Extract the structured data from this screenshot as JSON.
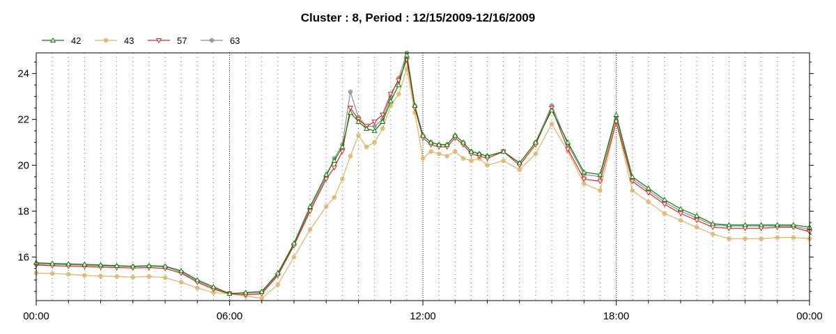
{
  "chart_data": {
    "type": "line",
    "title": "Cluster : 8, Period : 12/15/2009-12/16/2009",
    "xlabel": "",
    "ylabel": "",
    "x_ticks": [
      "00:00",
      "06:00",
      "12:00",
      "18:00",
      "00:00"
    ],
    "y_ticks": [
      "16",
      "18",
      "20",
      "22",
      "24"
    ],
    "xlim_hours": [
      0,
      24
    ],
    "ylim": [
      14.1,
      24.9
    ],
    "grid": true,
    "legend_position": "top-left",
    "x_hours": [
      0,
      0.5,
      1,
      1.5,
      2,
      2.5,
      3,
      3.5,
      4,
      4.5,
      5,
      5.5,
      6,
      6.5,
      7,
      7.5,
      8,
      8.5,
      9,
      9.25,
      9.5,
      9.75,
      10,
      10.25,
      10.5,
      10.75,
      11,
      11.25,
      11.5,
      11.75,
      12,
      12.25,
      12.5,
      12.75,
      13,
      13.25,
      13.5,
      13.75,
      14,
      14.5,
      15,
      15.5,
      16,
      16.5,
      17,
      17.5,
      18,
      18.5,
      19,
      19.5,
      20,
      20.5,
      21,
      21.5,
      22,
      22.5,
      23,
      23.5,
      24
    ],
    "series": [
      {
        "name": "42",
        "color": "#008000",
        "marker": "triangle-up",
        "values": [
          15.75,
          15.72,
          15.7,
          15.68,
          15.65,
          15.62,
          15.6,
          15.62,
          15.6,
          15.4,
          15.0,
          14.7,
          14.4,
          14.45,
          14.5,
          15.3,
          16.6,
          18.2,
          19.6,
          20.2,
          20.8,
          22.3,
          21.9,
          21.6,
          21.5,
          21.9,
          22.8,
          23.5,
          24.8,
          22.6,
          21.3,
          21.0,
          20.9,
          20.9,
          21.3,
          21.0,
          20.6,
          20.5,
          20.4,
          20.6,
          20.1,
          21.0,
          22.4,
          21.0,
          19.7,
          19.6,
          22.2,
          19.5,
          19.0,
          18.5,
          18.1,
          17.8,
          17.45,
          17.4,
          17.4,
          17.4,
          17.4,
          17.4,
          17.3
        ]
      },
      {
        "name": "43",
        "color": "#ddb360",
        "marker": "circle",
        "values": [
          15.3,
          15.28,
          15.25,
          15.2,
          15.17,
          15.15,
          15.12,
          15.15,
          15.1,
          14.9,
          14.65,
          14.45,
          14.4,
          14.3,
          14.2,
          14.8,
          16.0,
          17.2,
          18.2,
          18.6,
          19.4,
          20.4,
          21.3,
          20.8,
          21.0,
          21.6,
          22.6,
          23.1,
          24.2,
          22.3,
          20.3,
          20.6,
          20.5,
          20.4,
          20.6,
          20.3,
          20.2,
          20.3,
          20.0,
          20.2,
          19.8,
          20.5,
          21.8,
          20.6,
          19.2,
          18.9,
          21.9,
          18.9,
          18.4,
          17.9,
          17.6,
          17.3,
          17.0,
          16.8,
          16.8,
          16.8,
          16.85,
          16.85,
          16.8
        ]
      },
      {
        "name": "57",
        "color": "#e02020",
        "marker": "triangle-down",
        "values": [
          15.65,
          15.62,
          15.6,
          15.58,
          15.56,
          15.54,
          15.52,
          15.54,
          15.5,
          15.3,
          14.9,
          14.6,
          14.4,
          14.35,
          14.4,
          15.2,
          16.5,
          18.0,
          19.4,
          19.9,
          20.6,
          22.5,
          22.0,
          21.7,
          21.9,
          22.2,
          23.1,
          23.7,
          24.6,
          22.5,
          21.2,
          20.9,
          20.8,
          20.8,
          21.2,
          20.9,
          20.5,
          20.4,
          20.3,
          20.6,
          20.0,
          20.9,
          22.5,
          20.7,
          19.4,
          19.3,
          21.9,
          19.3,
          18.8,
          18.3,
          17.9,
          17.6,
          17.3,
          17.25,
          17.25,
          17.25,
          17.3,
          17.3,
          17.1
        ]
      },
      {
        "name": "63",
        "color": "#8c8c8c",
        "marker": "circle",
        "values": [
          15.7,
          15.68,
          15.66,
          15.64,
          15.62,
          15.6,
          15.58,
          15.6,
          15.58,
          15.35,
          14.95,
          14.65,
          14.42,
          14.42,
          14.45,
          15.25,
          16.55,
          18.1,
          19.5,
          20.3,
          20.9,
          23.2,
          22.1,
          21.7,
          21.7,
          22.0,
          23.0,
          23.8,
          24.9,
          22.6,
          21.3,
          21.0,
          20.9,
          20.9,
          21.3,
          21.0,
          20.6,
          20.5,
          20.4,
          20.6,
          20.1,
          21.0,
          22.6,
          20.9,
          19.6,
          19.5,
          22.1,
          19.4,
          18.9,
          18.4,
          18.0,
          17.7,
          17.4,
          17.35,
          17.35,
          17.35,
          17.35,
          17.35,
          17.2
        ]
      }
    ]
  }
}
